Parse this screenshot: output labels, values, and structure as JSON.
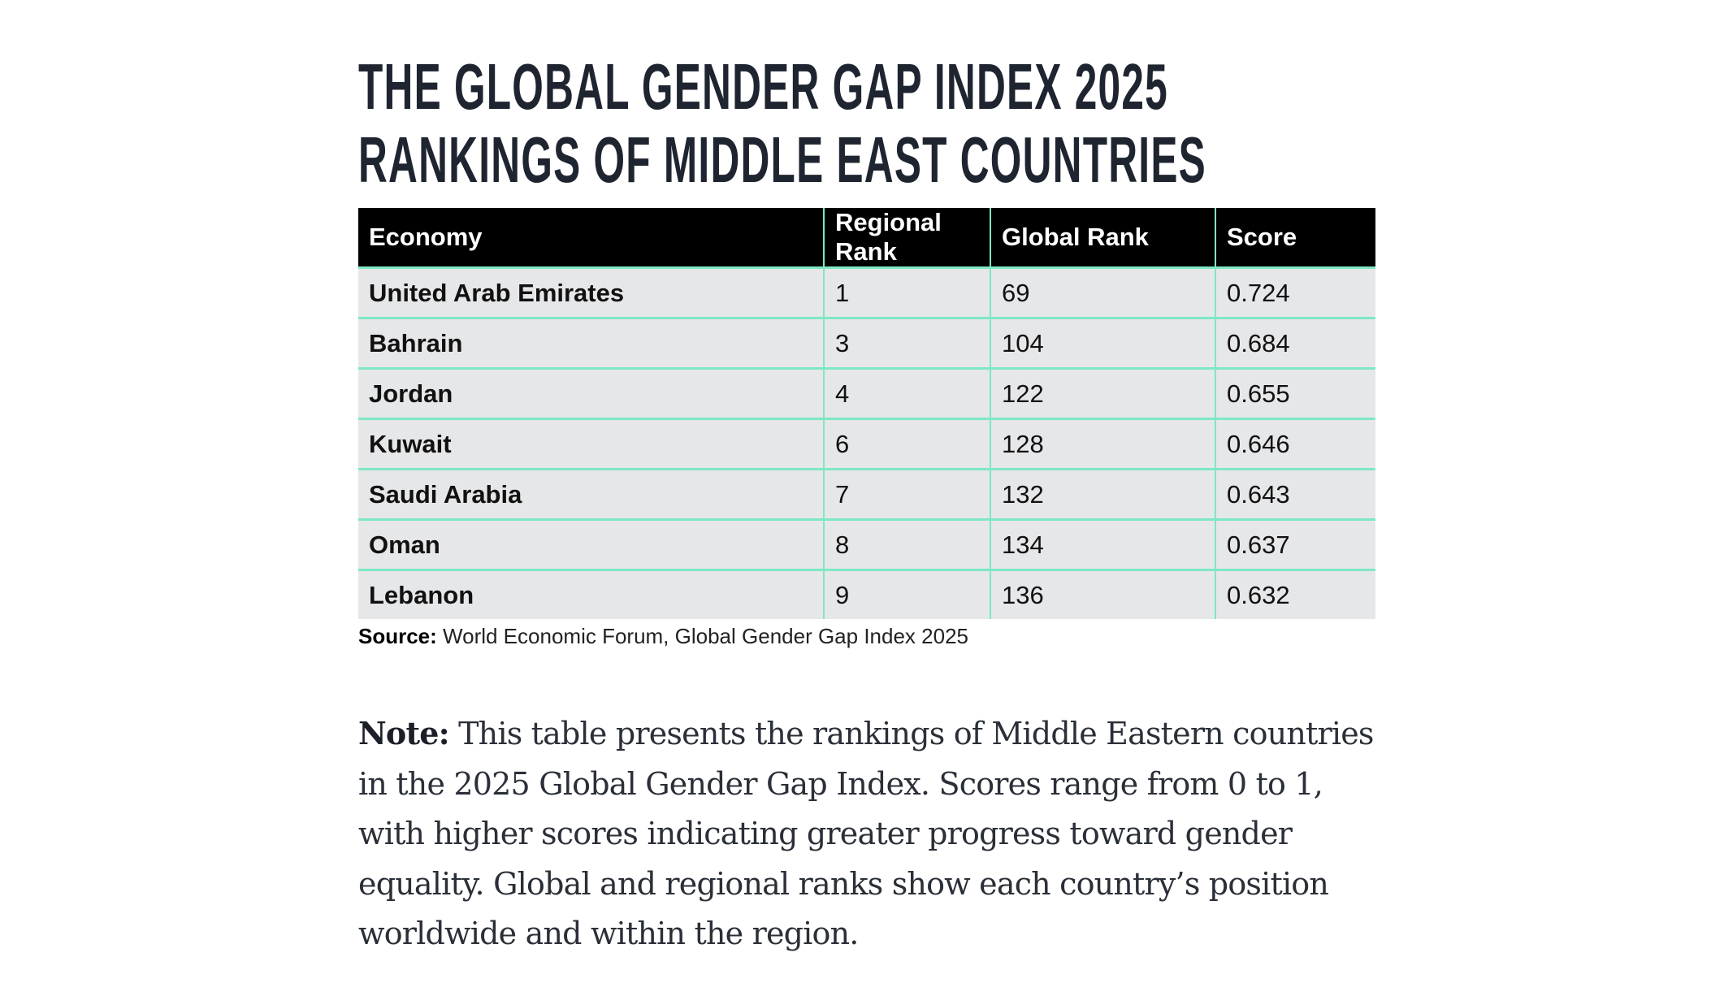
{
  "title": {
    "line1": "THE GLOBAL GENDER GAP INDEX 2025",
    "line2": "RANKINGS OF MIDDLE EAST COUNTRIES"
  },
  "table": {
    "headers": [
      "Economy",
      "Regional Rank",
      "Global Rank",
      "Score"
    ],
    "rows": [
      [
        "United Arab Emirates",
        "1",
        "69",
        "0.724"
      ],
      [
        "Bahrain",
        "3",
        "104",
        "0.684"
      ],
      [
        "Jordan",
        "4",
        "122",
        "0.655"
      ],
      [
        "Kuwait",
        "6",
        "128",
        "0.646"
      ],
      [
        "Saudi Arabia",
        "7",
        "132",
        "0.643"
      ],
      [
        "Oman",
        "8",
        "134",
        "0.637"
      ],
      [
        "Lebanon",
        "9",
        "136",
        "0.632"
      ]
    ]
  },
  "source": {
    "label": "Source:",
    "text": " World Economic Forum, Global Gender Gap Index 2025"
  },
  "note": {
    "label": "Note:",
    "text": " This table presents the rankings of Middle Eastern countries in the 2025 Global Gender Gap Index. Scores range from 0 to 1, with higher scores indicating greater progress toward gender equality. Global and regional ranks show each country’s position worldwide and within the region."
  },
  "colors": {
    "header_bg": "#000000",
    "row_bg": "#e6e7e9",
    "grid": "#7ee8c4"
  }
}
